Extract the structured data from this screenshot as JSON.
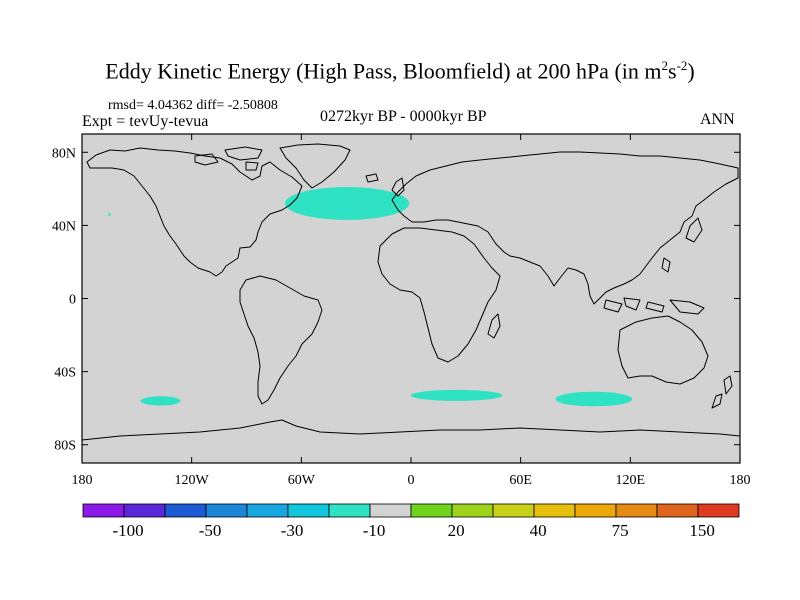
{
  "title": {
    "main": "Eddy Kinetic Energy (High Pass, Bloomfield) at 200 hPa (in m",
    "sup1": "2",
    "mid": "s",
    "sup2": "-2",
    "end": ")"
  },
  "stats_line": "rmsd= 4.04362 diff= -2.50808",
  "experiment_line": "Expt = tevUy-tevua",
  "period_line": "0272kyr BP - 0000kyr BP",
  "season": "ANN",
  "colors": {
    "land_ocean_background": "#d3d3d3",
    "anomaly_fill": "#2fe2c4",
    "coastline": "#000000"
  },
  "chart_data": {
    "type": "heatmap",
    "variable": "Eddy Kinetic Energy difference",
    "level_hPa": 200,
    "units": "m2 s-2",
    "projection": "cylindrical equidistant",
    "x_range": [
      -180,
      180
    ],
    "y_range": [
      -90,
      90
    ],
    "x_ticks": [
      {
        "value": -180,
        "label": "180"
      },
      {
        "value": -120,
        "label": "120W"
      },
      {
        "value": -60,
        "label": "60W"
      },
      {
        "value": 0,
        "label": "0"
      },
      {
        "value": 60,
        "label": "60E"
      },
      {
        "value": 120,
        "label": "120E"
      },
      {
        "value": 180,
        "label": "180"
      }
    ],
    "y_ticks": [
      {
        "value": 80,
        "label": "80N"
      },
      {
        "value": 40,
        "label": "40N"
      },
      {
        "value": 0,
        "label": "0"
      },
      {
        "value": -40,
        "label": "40S"
      },
      {
        "value": -80,
        "label": "80S"
      }
    ],
    "colorbar": {
      "colors": [
        "#8b1ae8",
        "#5b28d9",
        "#1d5bd6",
        "#1b85d8",
        "#17a6e0",
        "#12c6dd",
        "#2fe2c4",
        "#d3d3d3",
        "#6fd41b",
        "#9ed31b",
        "#c8d01a",
        "#e5c10d",
        "#ebaa0a",
        "#e58a12",
        "#e0651c",
        "#df3a22"
      ],
      "labels": [
        {
          "after_box": 2,
          "text": "-100"
        },
        {
          "after_box": 4,
          "text": "-50"
        },
        {
          "after_box": 6,
          "text": "-30"
        },
        {
          "after_box": 8,
          "text": "-10"
        },
        {
          "after_box": 10,
          "text": "20"
        },
        {
          "after_box": 12,
          "text": "40"
        },
        {
          "after_box": 14,
          "text": "75"
        },
        {
          "after_box": 16,
          "text": "150"
        }
      ]
    },
    "anomaly_regions": [
      {
        "name": "North Atlantic",
        "value_bin": "-10",
        "center_lon": -35,
        "center_lat": 52,
        "half_width_lon": 34,
        "half_height_lat": 9
      },
      {
        "name": "South Pacific",
        "value_bin": "-10",
        "center_lon": -137,
        "center_lat": -56,
        "half_width_lon": 11,
        "half_height_lat": 2.5
      },
      {
        "name": "South Atlantic",
        "value_bin": "-10",
        "center_lon": 25,
        "center_lat": -53,
        "half_width_lon": 25,
        "half_height_lat": 3
      },
      {
        "name": "South Indian Ocean",
        "value_bin": "-10",
        "center_lon": 100,
        "center_lat": -55,
        "half_width_lon": 21,
        "half_height_lat": 4
      },
      {
        "name": "North Pacific speck",
        "value_bin": "-10",
        "center_lon": -165,
        "center_lat": 46,
        "half_width_lon": 0.6,
        "half_height_lat": 1
      }
    ]
  }
}
